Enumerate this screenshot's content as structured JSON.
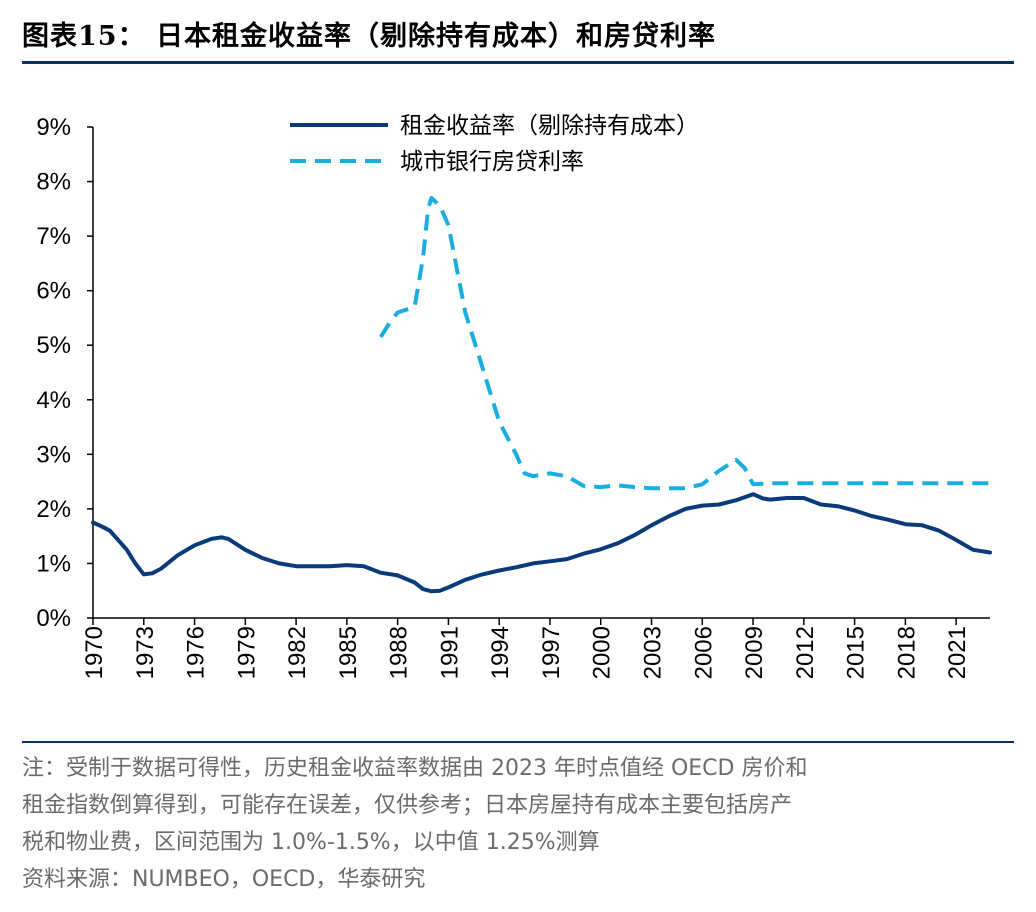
{
  "title": "图表15： 日本租金收益率（剔除持有成本）和房贷利率",
  "notes": [
    "注：受制于数据可得性，历史租金收益率数据由 2023 年时点值经 OECD 房价和",
    "租金指数倒算得到，可能存在误差，仅供参考；日本房屋持有成本主要包括房产",
    "税和物业费，区间范围为 1.0%-1.5%，以中值 1.25%测算"
  ],
  "source": "资料来源：NUMBEO，OECD，华泰研究",
  "chart_data": {
    "type": "line",
    "title": "",
    "xlabel": "",
    "ylabel": "",
    "xlim": [
      1970,
      2023
    ],
    "ylim": [
      0,
      9
    ],
    "y_ticks": [
      "0%",
      "1%",
      "2%",
      "3%",
      "4%",
      "5%",
      "6%",
      "7%",
      "8%",
      "9%"
    ],
    "x_ticks": [
      "1970",
      "1973",
      "1976",
      "1979",
      "1982",
      "1985",
      "1988",
      "1991",
      "1994",
      "1997",
      "2000",
      "2003",
      "2006",
      "2009",
      "2012",
      "2015",
      "2018",
      "2021"
    ],
    "legend_position": "top-center",
    "series": [
      {
        "name": "租金收益率（剔除持有成本）",
        "color": "#0a3a7a",
        "style": "solid",
        "points": [
          [
            1970.0,
            1.75
          ],
          [
            1970.5,
            1.68
          ],
          [
            1971.0,
            1.6
          ],
          [
            1972.0,
            1.25
          ],
          [
            1972.5,
            1.0
          ],
          [
            1973.0,
            0.8
          ],
          [
            1973.5,
            0.82
          ],
          [
            1974.0,
            0.9
          ],
          [
            1975.0,
            1.15
          ],
          [
            1976.0,
            1.33
          ],
          [
            1977.0,
            1.45
          ],
          [
            1977.6,
            1.48
          ],
          [
            1978.0,
            1.45
          ],
          [
            1979.0,
            1.25
          ],
          [
            1980.0,
            1.1
          ],
          [
            1981.0,
            1.0
          ],
          [
            1982.0,
            0.95
          ],
          [
            1983.0,
            0.95
          ],
          [
            1984.0,
            0.95
          ],
          [
            1985.0,
            0.97
          ],
          [
            1986.0,
            0.95
          ],
          [
            1987.0,
            0.83
          ],
          [
            1988.0,
            0.78
          ],
          [
            1989.0,
            0.65
          ],
          [
            1989.5,
            0.53
          ],
          [
            1990.0,
            0.49
          ],
          [
            1990.5,
            0.5
          ],
          [
            1991.0,
            0.56
          ],
          [
            1992.0,
            0.7
          ],
          [
            1993.0,
            0.8
          ],
          [
            1994.0,
            0.87
          ],
          [
            1995.0,
            0.93
          ],
          [
            1996.0,
            1.0
          ],
          [
            1997.0,
            1.04
          ],
          [
            1998.0,
            1.08
          ],
          [
            1999.0,
            1.18
          ],
          [
            2000.0,
            1.26
          ],
          [
            2001.0,
            1.37
          ],
          [
            2002.0,
            1.52
          ],
          [
            2003.0,
            1.7
          ],
          [
            2004.0,
            1.86
          ],
          [
            2005.0,
            2.0
          ],
          [
            2006.0,
            2.06
          ],
          [
            2007.0,
            2.08
          ],
          [
            2008.0,
            2.16
          ],
          [
            2009.0,
            2.27
          ],
          [
            2009.6,
            2.19
          ],
          [
            2010.0,
            2.17
          ],
          [
            2011.0,
            2.2
          ],
          [
            2012.0,
            2.2
          ],
          [
            2013.0,
            2.08
          ],
          [
            2014.0,
            2.05
          ],
          [
            2015.0,
            1.97
          ],
          [
            2016.0,
            1.87
          ],
          [
            2017.0,
            1.8
          ],
          [
            2018.0,
            1.72
          ],
          [
            2019.0,
            1.7
          ],
          [
            2020.0,
            1.6
          ],
          [
            2021.0,
            1.43
          ],
          [
            2022.0,
            1.25
          ],
          [
            2023.0,
            1.2
          ]
        ]
      },
      {
        "name": "城市银行房贷利率",
        "color": "#1aaee0",
        "style": "dashed",
        "points": [
          [
            1987.0,
            5.15
          ],
          [
            1987.5,
            5.4
          ],
          [
            1988.0,
            5.6
          ],
          [
            1989.0,
            5.7
          ],
          [
            1989.5,
            6.6
          ],
          [
            1989.8,
            7.5
          ],
          [
            1990.0,
            7.7
          ],
          [
            1990.5,
            7.55
          ],
          [
            1991.0,
            7.2
          ],
          [
            1992.0,
            5.6
          ],
          [
            1993.0,
            4.6
          ],
          [
            1994.0,
            3.6
          ],
          [
            1995.0,
            3.0
          ],
          [
            1995.5,
            2.65
          ],
          [
            1996.0,
            2.6
          ],
          [
            1997.0,
            2.65
          ],
          [
            1998.0,
            2.6
          ],
          [
            1999.0,
            2.42
          ],
          [
            2000.0,
            2.4
          ],
          [
            2001.0,
            2.43
          ],
          [
            2002.0,
            2.4
          ],
          [
            2003.0,
            2.38
          ],
          [
            2004.0,
            2.38
          ],
          [
            2005.0,
            2.38
          ],
          [
            2006.0,
            2.45
          ],
          [
            2007.0,
            2.7
          ],
          [
            2008.0,
            2.9
          ],
          [
            2008.5,
            2.75
          ],
          [
            2009.0,
            2.45
          ],
          [
            2010.0,
            2.47
          ],
          [
            2011.0,
            2.47
          ],
          [
            2012.0,
            2.47
          ],
          [
            2013.0,
            2.47
          ],
          [
            2014.0,
            2.47
          ],
          [
            2015.0,
            2.47
          ],
          [
            2016.0,
            2.47
          ],
          [
            2017.0,
            2.47
          ],
          [
            2018.0,
            2.47
          ],
          [
            2019.0,
            2.47
          ],
          [
            2020.0,
            2.47
          ],
          [
            2021.0,
            2.47
          ],
          [
            2022.0,
            2.47
          ],
          [
            2023.0,
            2.47
          ]
        ]
      }
    ]
  }
}
